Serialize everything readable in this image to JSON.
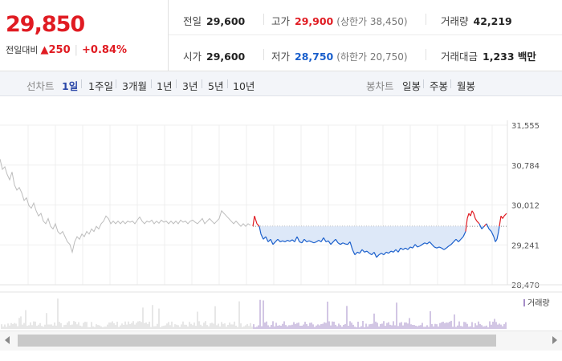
{
  "quote": {
    "price": "29,850",
    "change_label": "전일대비",
    "change_arrow": "▲",
    "change_value": "250",
    "change_pct": "+0.84%",
    "stats": {
      "prev_close_label": "전일",
      "prev_close": "29,600",
      "open_label": "시가",
      "open": "29,600",
      "high_label": "고가",
      "high": "29,900",
      "upper_limit": "(상한가 38,450)",
      "low_label": "저가",
      "low": "28,750",
      "lower_limit": "(하한가 20,750)",
      "volume_label": "거래량",
      "volume": "42,219",
      "amount_label": "거래대금",
      "amount": "1,233 백만"
    }
  },
  "period_bar": {
    "line_caption": "선차트",
    "line_options": [
      "1일",
      "1주일",
      "3개월",
      "1년",
      "3년",
      "5년",
      "10년"
    ],
    "selected_line": "1일",
    "candle_caption": "봉차트",
    "candle_options": [
      "일봉",
      "주봉",
      "월봉"
    ]
  },
  "chart_data": {
    "type": "line",
    "ylim": [
      28470,
      31555
    ],
    "y_ticks": [
      "31,555",
      "30,784",
      "30,012",
      "29,241",
      "28,470"
    ],
    "reference_price": 29600,
    "previous_day_series": [
      [
        0,
        30900
      ],
      [
        3,
        30700
      ],
      [
        6,
        30750
      ],
      [
        9,
        30600
      ],
      [
        12,
        30500
      ],
      [
        15,
        30650
      ],
      [
        18,
        30400
      ],
      [
        21,
        30300
      ],
      [
        24,
        30350
      ],
      [
        27,
        30250
      ],
      [
        30,
        30100
      ],
      [
        33,
        30150
      ],
      [
        36,
        30000
      ],
      [
        39,
        29950
      ],
      [
        42,
        30050
      ],
      [
        45,
        29900
      ],
      [
        48,
        29800
      ],
      [
        51,
        29850
      ],
      [
        54,
        29700
      ],
      [
        57,
        29650
      ],
      [
        60,
        29750
      ],
      [
        63,
        29600
      ],
      [
        66,
        29550
      ],
      [
        69,
        29650
      ],
      [
        72,
        29500
      ],
      [
        75,
        29450
      ],
      [
        78,
        29500
      ],
      [
        81,
        29400
      ],
      [
        84,
        29300
      ],
      [
        87,
        29250
      ],
      [
        90,
        29100
      ],
      [
        93,
        29300
      ],
      [
        96,
        29400
      ],
      [
        99,
        29350
      ],
      [
        102,
        29450
      ],
      [
        105,
        29400
      ],
      [
        108,
        29500
      ],
      [
        111,
        29450
      ],
      [
        114,
        29550
      ],
      [
        117,
        29500
      ],
      [
        120,
        29600
      ],
      [
        123,
        29550
      ],
      [
        126,
        29650
      ],
      [
        129,
        29700
      ],
      [
        132,
        29800
      ],
      [
        135,
        29750
      ],
      [
        138,
        29650
      ],
      [
        141,
        29700
      ],
      [
        144,
        29650
      ],
      [
        147,
        29700
      ],
      [
        150,
        29650
      ],
      [
        153,
        29700
      ],
      [
        156,
        29650
      ],
      [
        159,
        29700
      ],
      [
        162,
        29680
      ],
      [
        165,
        29700
      ],
      [
        168,
        29650
      ],
      [
        171,
        29720
      ],
      [
        174,
        29780
      ],
      [
        177,
        29700
      ],
      [
        180,
        29650
      ],
      [
        183,
        29700
      ],
      [
        186,
        29680
      ],
      [
        189,
        29720
      ],
      [
        192,
        29650
      ],
      [
        195,
        29700
      ],
      [
        198,
        29660
      ],
      [
        201,
        29720
      ],
      [
        204,
        29680
      ],
      [
        207,
        29700
      ],
      [
        210,
        29650
      ],
      [
        213,
        29700
      ],
      [
        216,
        29650
      ],
      [
        219,
        29700
      ],
      [
        222,
        29650
      ],
      [
        225,
        29720
      ],
      [
        228,
        29680
      ],
      [
        231,
        29700
      ],
      [
        234,
        29650
      ],
      [
        237,
        29700
      ],
      [
        240,
        29720
      ],
      [
        243,
        29680
      ],
      [
        246,
        29650
      ],
      [
        249,
        29700
      ],
      [
        252,
        29750
      ],
      [
        255,
        29650
      ],
      [
        258,
        29700
      ],
      [
        261,
        29750
      ],
      [
        264,
        29700
      ],
      [
        267,
        29650
      ],
      [
        270,
        29700
      ],
      [
        273,
        29750
      ],
      [
        276,
        29900
      ],
      [
        279,
        29850
      ],
      [
        282,
        29800
      ],
      [
        285,
        29750
      ],
      [
        288,
        29700
      ],
      [
        291,
        29650
      ],
      [
        294,
        29700
      ],
      [
        297,
        29650
      ],
      [
        300,
        29600
      ],
      [
        303,
        29650
      ],
      [
        306,
        29600
      ],
      [
        309,
        29650
      ],
      [
        312,
        29620
      ]
    ],
    "today_series": [
      [
        315,
        29600
      ],
      [
        317,
        29800
      ],
      [
        320,
        29650
      ],
      [
        323,
        29600
      ],
      [
        325,
        29450
      ],
      [
        328,
        29350
      ],
      [
        331,
        29400
      ],
      [
        334,
        29300
      ],
      [
        337,
        29350
      ],
      [
        340,
        29250
      ],
      [
        343,
        29300
      ],
      [
        346,
        29350
      ],
      [
        349,
        29300
      ],
      [
        352,
        29320
      ],
      [
        355,
        29300
      ],
      [
        358,
        29330
      ],
      [
        361,
        29310
      ],
      [
        364,
        29340
      ],
      [
        367,
        29300
      ],
      [
        370,
        29400
      ],
      [
        373,
        29300
      ],
      [
        376,
        29280
      ],
      [
        379,
        29350
      ],
      [
        382,
        29300
      ],
      [
        385,
        29320
      ],
      [
        388,
        29300
      ],
      [
        391,
        29280
      ],
      [
        394,
        29300
      ],
      [
        397,
        29330
      ],
      [
        400,
        29300
      ],
      [
        403,
        29380
      ],
      [
        406,
        29300
      ],
      [
        409,
        29320
      ],
      [
        412,
        29250
      ],
      [
        415,
        29300
      ],
      [
        418,
        29350
      ],
      [
        421,
        29280
      ],
      [
        424,
        29250
      ],
      [
        427,
        29280
      ],
      [
        430,
        29260
      ],
      [
        433,
        29250
      ],
      [
        436,
        29300
      ],
      [
        439,
        29150
      ],
      [
        442,
        29050
      ],
      [
        445,
        29100
      ],
      [
        448,
        29080
      ],
      [
        451,
        29150
      ],
      [
        454,
        29100
      ],
      [
        457,
        29120
      ],
      [
        460,
        29080
      ],
      [
        463,
        29050
      ],
      [
        466,
        29100
      ],
      [
        469,
        29000
      ],
      [
        472,
        29050
      ],
      [
        475,
        29080
      ],
      [
        478,
        29050
      ],
      [
        481,
        29100
      ],
      [
        484,
        29080
      ],
      [
        487,
        29120
      ],
      [
        490,
        29100
      ],
      [
        493,
        29150
      ],
      [
        496,
        29100
      ],
      [
        499,
        29180
      ],
      [
        502,
        29150
      ],
      [
        505,
        29180
      ],
      [
        508,
        29150
      ],
      [
        511,
        29200
      ],
      [
        514,
        29180
      ],
      [
        517,
        29250
      ],
      [
        520,
        29200
      ],
      [
        523,
        29220
      ],
      [
        526,
        29250
      ],
      [
        529,
        29280
      ],
      [
        532,
        29260
      ],
      [
        535,
        29300
      ],
      [
        538,
        29250
      ],
      [
        541,
        29200
      ],
      [
        544,
        29180
      ],
      [
        547,
        29200
      ],
      [
        550,
        29180
      ],
      [
        553,
        29150
      ],
      [
        556,
        29180
      ],
      [
        559,
        29220
      ],
      [
        562,
        29250
      ],
      [
        565,
        29300
      ],
      [
        568,
        29350
      ],
      [
        571,
        29300
      ],
      [
        574,
        29350
      ],
      [
        577,
        29400
      ],
      [
        580,
        29500
      ],
      [
        582,
        29750
      ],
      [
        584,
        29850
      ],
      [
        586,
        29800
      ],
      [
        588,
        29900
      ],
      [
        590,
        29850
      ],
      [
        592,
        29750
      ],
      [
        594,
        29700
      ],
      [
        597,
        29650
      ],
      [
        600,
        29550
      ],
      [
        603,
        29600
      ],
      [
        606,
        29650
      ],
      [
        609,
        29550
      ],
      [
        612,
        29500
      ],
      [
        615,
        29400
      ],
      [
        617,
        29300
      ],
      [
        619,
        29350
      ],
      [
        621,
        29500
      ],
      [
        622,
        29600
      ],
      [
        624,
        29800
      ],
      [
        626,
        29750
      ],
      [
        628,
        29800
      ],
      [
        631,
        29850
      ]
    ],
    "volume_label": "거래량",
    "colors": {
      "previous_day": "#bdbdbd",
      "today_up": "#e01b22",
      "today_down": "#1a5fcc",
      "area_fill": "#dde8f8",
      "grid": "#efefef",
      "volume_prev": "#cfcfcf",
      "volume_today": "#a58cc8"
    }
  },
  "scrollbar": {}
}
